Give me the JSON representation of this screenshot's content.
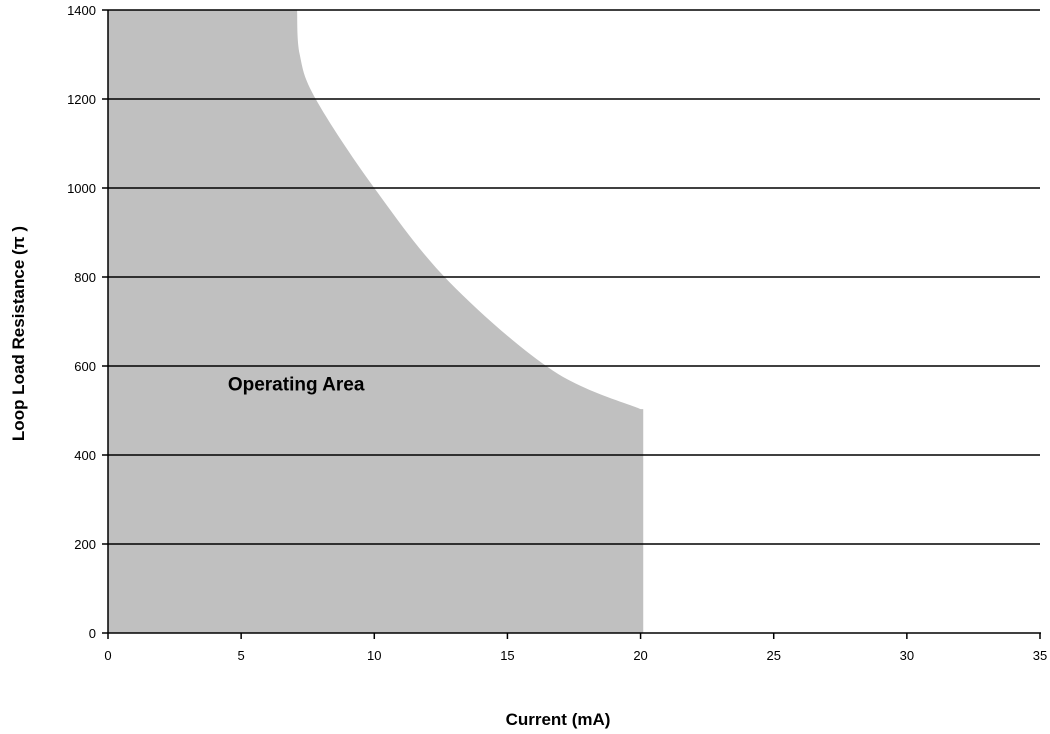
{
  "chart_data": {
    "type": "area",
    "xlabel": "Current (mA)",
    "ylabel": "Loop Load Resistance  (π )",
    "xlim": [
      0,
      35
    ],
    "ylim": [
      0,
      1400
    ],
    "x_ticks": [
      0,
      5,
      10,
      15,
      20,
      25,
      30,
      35
    ],
    "y_ticks": [
      0,
      200,
      400,
      600,
      800,
      1000,
      1200,
      1400
    ],
    "x_tick_labels": [
      "0",
      "5",
      "10",
      "15",
      "20",
      "25",
      "30",
      "35"
    ],
    "y_tick_labels": [
      "0",
      "200",
      "400",
      "600",
      "800",
      "1000",
      "1200",
      "1400"
    ],
    "grid": "horizontal",
    "region_boundary": {
      "x": [
        7.1,
        7.2,
        7.8,
        10.0,
        12.8,
        16.7,
        20.0,
        20.1
      ],
      "y": [
        1400,
        1300,
        1200,
        1000,
        790,
        590,
        503,
        0
      ]
    },
    "region_color": "#c0c0c0",
    "annotations": [
      {
        "text": "Operating Area",
        "x": 4.5,
        "y": 545
      }
    ]
  }
}
